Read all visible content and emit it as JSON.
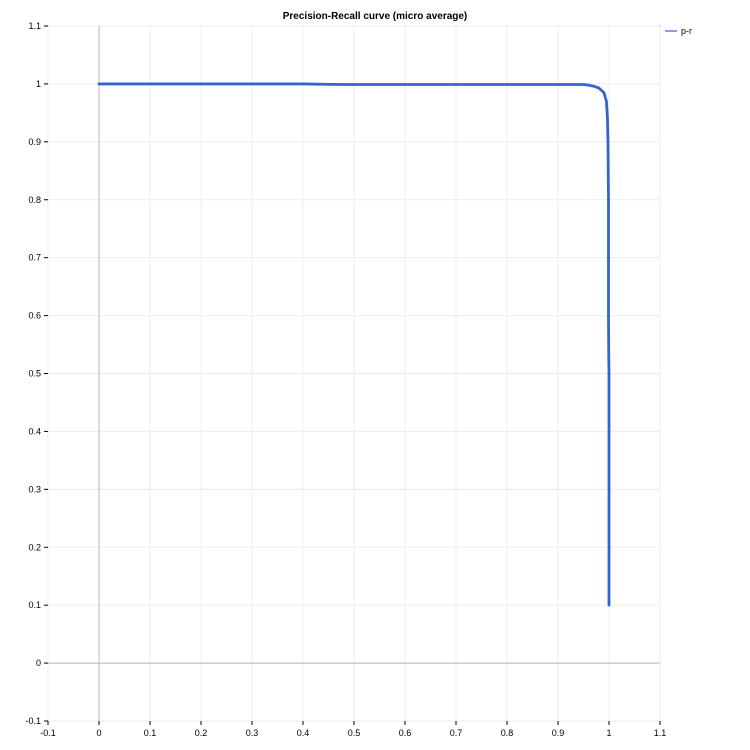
{
  "chart_data": {
    "type": "line",
    "title": "Precision-Recall curve (micro average)",
    "xlabel": "",
    "ylabel": "",
    "xlim": [
      -0.1,
      1.1
    ],
    "ylim": [
      -0.1,
      1.1
    ],
    "x_ticks": [
      "-0.1",
      "0",
      "0.1",
      "0.2",
      "0.3",
      "0.4",
      "0.5",
      "0.6",
      "0.7",
      "0.8",
      "0.9",
      "1",
      "1.1"
    ],
    "y_ticks": [
      "1.1",
      "1",
      "0.9",
      "0.8",
      "0.7",
      "0.6",
      "0.5",
      "0.4",
      "0.3",
      "0.2",
      "0.1",
      "0",
      "-0.1"
    ],
    "grid": true,
    "legend_position": "top-right",
    "series": [
      {
        "name": "p-r",
        "color": "#3366cc",
        "points": [
          [
            0.0,
            1.0
          ],
          [
            0.1,
            1.0
          ],
          [
            0.2,
            1.0
          ],
          [
            0.3,
            1.0
          ],
          [
            0.4,
            1.0
          ],
          [
            0.47,
            0.999
          ],
          [
            0.5,
            0.999
          ],
          [
            0.6,
            0.999
          ],
          [
            0.7,
            0.999
          ],
          [
            0.8,
            0.999
          ],
          [
            0.9,
            0.999
          ],
          [
            0.95,
            0.999
          ],
          [
            0.96,
            0.998
          ],
          [
            0.97,
            0.996
          ],
          [
            0.98,
            0.993
          ],
          [
            0.99,
            0.985
          ],
          [
            0.995,
            0.97
          ],
          [
            0.997,
            0.94
          ],
          [
            0.998,
            0.9
          ],
          [
            0.999,
            0.8
          ],
          [
            0.999,
            0.7
          ],
          [
            0.999,
            0.6
          ],
          [
            0.9995,
            0.53
          ],
          [
            1.0,
            0.5
          ],
          [
            1.0,
            0.4
          ],
          [
            1.0,
            0.3
          ],
          [
            1.0,
            0.2
          ],
          [
            1.0,
            0.1
          ]
        ]
      }
    ]
  }
}
